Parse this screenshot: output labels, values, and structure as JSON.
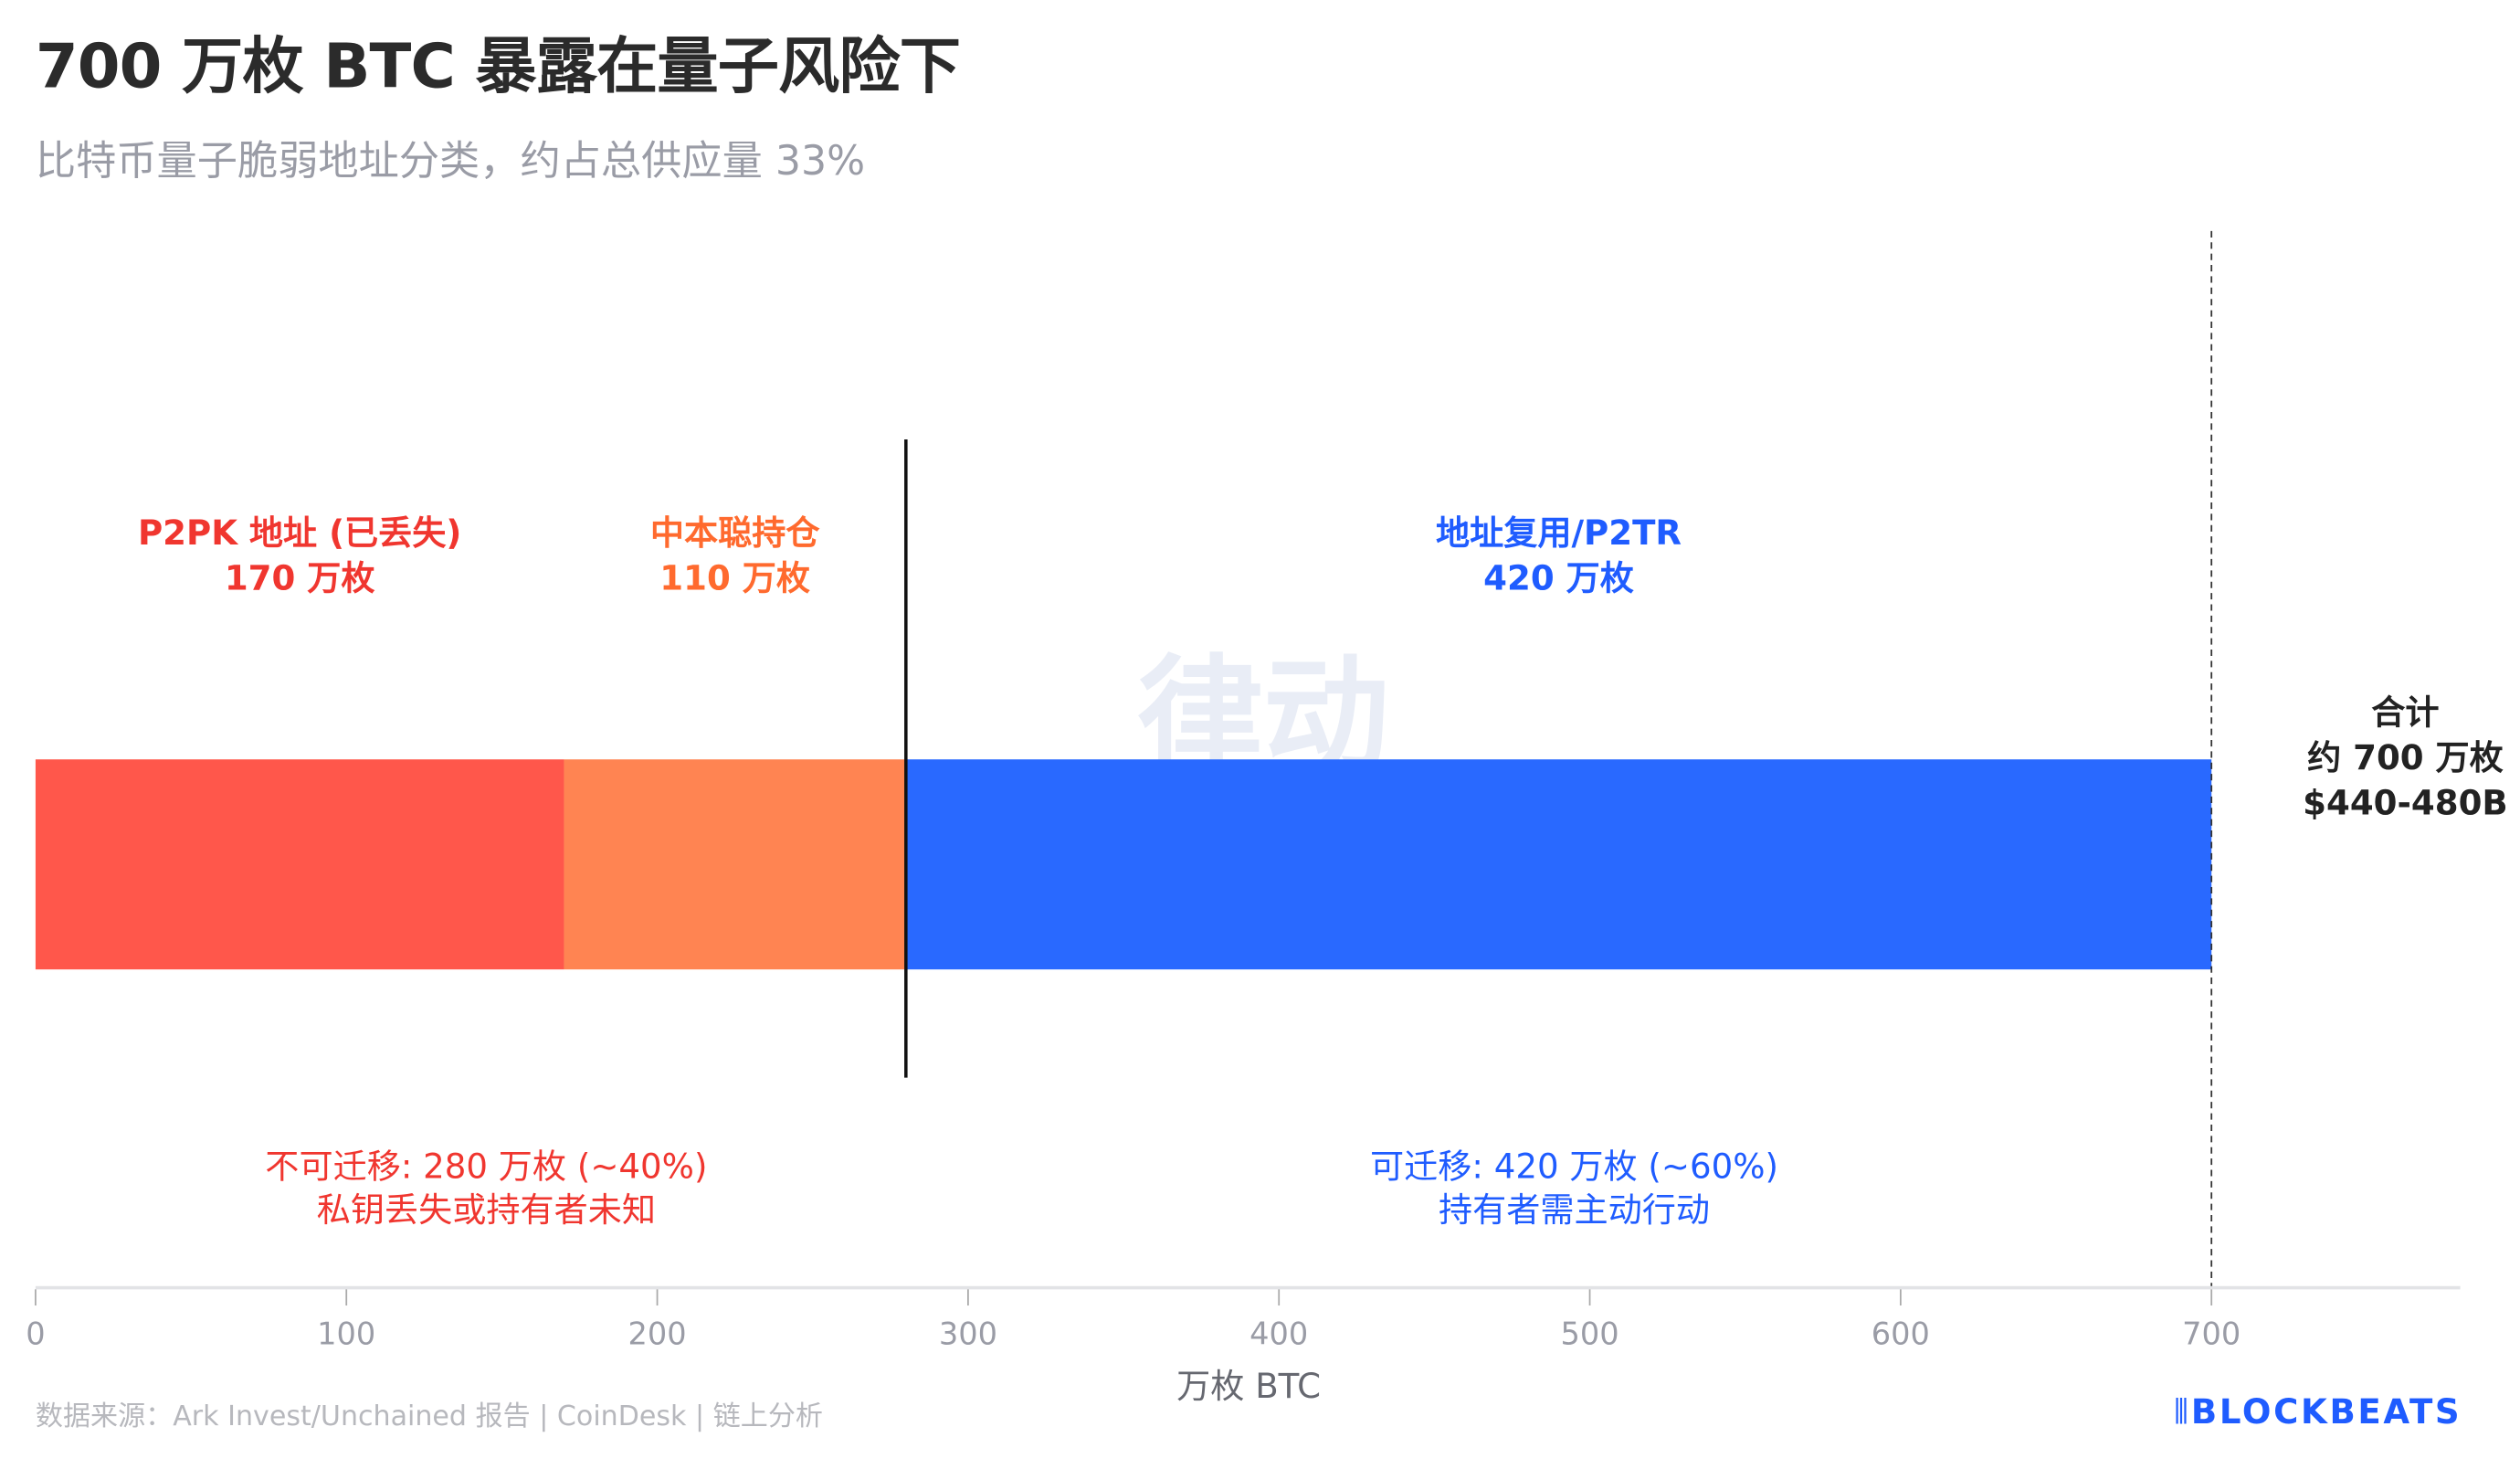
{
  "title": "700 万枚 BTC 暴露在量子风险下",
  "subtitle": "比特币量子脆弱地址分类，约占总供应量 33%",
  "source": "数据来源：Ark Invest/Unchained 报告 | CoinDesk | 链上分析",
  "logo": "BLOCKBEATS",
  "watermark": {
    "cn": "律动",
    "en": "BLOCKBEATS"
  },
  "chart_data": {
    "type": "bar",
    "orientation": "horizontal-stacked",
    "xlabel": "万枚 BTC",
    "xlim": [
      0,
      780
    ],
    "xticks": [
      0,
      100,
      200,
      300,
      400,
      500,
      600,
      700
    ],
    "grid": false,
    "series": [
      {
        "name": "P2PK 地址 (已丢失)",
        "label": "170 万枚",
        "start": 0,
        "value": 170,
        "color": "#ff574b"
      },
      {
        "name": "中本聪持仓",
        "label": "110 万枚",
        "start": 170,
        "value": 110,
        "color": "#ff8452"
      },
      {
        "name": "地址复用/P2TR",
        "label": "420 万枚",
        "start": 280,
        "value": 420,
        "color": "#2969ff"
      }
    ],
    "divider_at": 280,
    "total_line_at": 700,
    "total": {
      "lines": [
        "合计",
        "约 700 万枚",
        "$440-480B"
      ],
      "color": "#222222"
    },
    "annotations": [
      {
        "lines": [
          "不可迁移: 280 万枚 (~40%)",
          "私钥丢失或持有者未知"
        ],
        "center": 145,
        "color": "#f0362f"
      },
      {
        "lines": [
          "可迁移: 420 万枚 (~60%)",
          "持有者需主动行动"
        ],
        "center": 495,
        "color": "#1f5cff"
      }
    ],
    "label_colors": [
      "#f0362f",
      "#ff6a2e",
      "#1f5cff"
    ]
  }
}
